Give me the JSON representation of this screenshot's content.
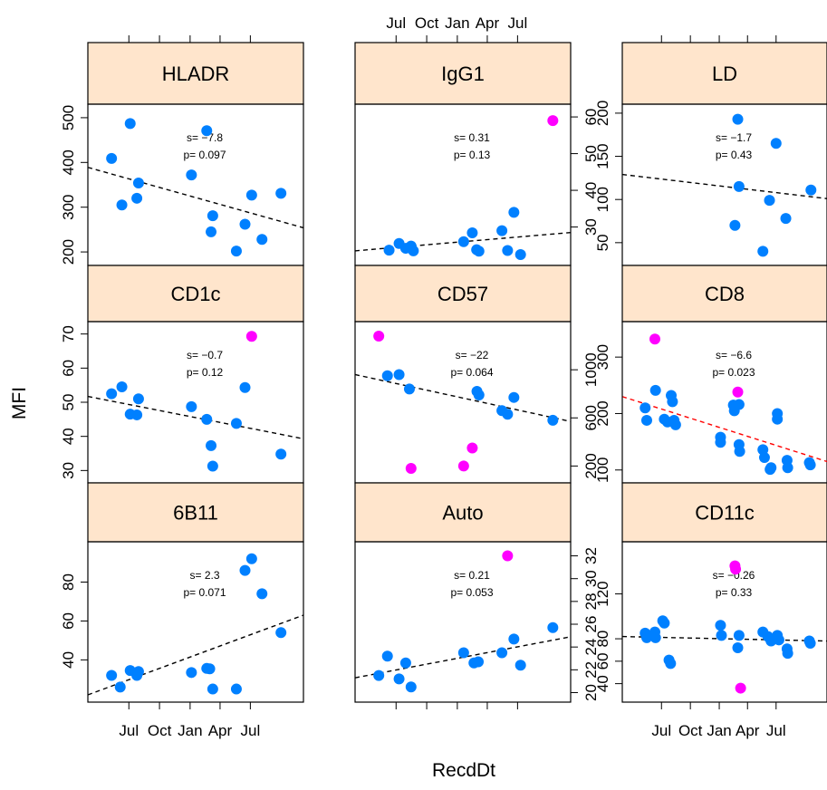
{
  "colors": {
    "strip_fill": "#FFE5CC",
    "point": "#0080FF",
    "outlier": "#FF00FF",
    "fit_line": "#000000",
    "fit_line_significant": "#FF0000"
  },
  "chart_data": {
    "type": "scatter",
    "layout": "lattice 3x3 trellis",
    "xlabel": "RecdDt",
    "ylabel": "MFI",
    "x_axis": {
      "type": "date",
      "range": [
        "2009-03-27",
        "2010-10-25"
      ],
      "ticks": [
        {
          "value": "2009-07-01",
          "label": "Jul"
        },
        {
          "value": "2009-10-01",
          "label": "Oct"
        },
        {
          "value": "2010-01-01",
          "label": "Jan"
        },
        {
          "value": "2010-04-01",
          "label": "Apr"
        },
        {
          "value": "2010-07-01",
          "label": "Jul"
        }
      ]
    },
    "panels": [
      {
        "name": "HLADR",
        "ylim": [
          186,
          514
        ],
        "yticks": [
          200,
          300,
          400,
          500
        ],
        "slope_text": "s= −7.8",
        "p_text": "p= 0.097",
        "fit": {
          "color": "black",
          "y_start": 389,
          "y_end": 254
        },
        "points": [
          {
            "date": "2009-05-10",
            "y": 409
          },
          {
            "date": "2009-06-10",
            "y": 305
          },
          {
            "date": "2009-07-05",
            "y": 487
          },
          {
            "date": "2009-07-25",
            "y": 320
          },
          {
            "date": "2009-07-30",
            "y": 354
          },
          {
            "date": "2010-01-05",
            "y": 372
          },
          {
            "date": "2010-02-20",
            "y": 471
          },
          {
            "date": "2010-03-10",
            "y": 281
          },
          {
            "date": "2010-03-05",
            "y": 245
          },
          {
            "date": "2010-05-20",
            "y": 202
          },
          {
            "date": "2010-06-15",
            "y": 262
          },
          {
            "date": "2010-07-05",
            "y": 327
          },
          {
            "date": "2010-08-05",
            "y": 228
          },
          {
            "date": "2010-10-01",
            "y": 331
          }
        ]
      },
      {
        "name": "IgG1",
        "ylim": [
          21.5,
          61.5
        ],
        "yticks": [
          30,
          40,
          50,
          60
        ],
        "slope_text": "s= 0.31",
        "p_text": "p= 0.13",
        "fit": {
          "color": "black",
          "y_start": 23.5,
          "y_end": 28.5
        },
        "points": [
          {
            "date": "2009-06-10",
            "y": 23.7
          },
          {
            "date": "2009-07-10",
            "y": 25.5
          },
          {
            "date": "2009-07-30",
            "y": 24.2
          },
          {
            "date": "2009-08-15",
            "y": 24.8
          },
          {
            "date": "2009-08-22",
            "y": 23.5
          },
          {
            "date": "2010-01-20",
            "y": 26.0
          },
          {
            "date": "2010-02-15",
            "y": 28.4
          },
          {
            "date": "2010-02-28",
            "y": 23.8
          },
          {
            "date": "2010-03-07",
            "y": 23.4
          },
          {
            "date": "2010-05-15",
            "y": 29.0
          },
          {
            "date": "2010-06-01",
            "y": 23.6
          },
          {
            "date": "2010-06-20",
            "y": 34.0
          },
          {
            "date": "2010-07-10",
            "y": 22.5
          },
          {
            "date": "2010-10-15",
            "y": 59.0,
            "outlier": true
          }
        ]
      },
      {
        "name": "LD",
        "ylim": [
          32,
          202
        ],
        "yticks": [
          50,
          100,
          150,
          200
        ],
        "slope_text": "s= −1.7",
        "p_text": "p= 0.43",
        "fit": {
          "color": "black",
          "y_start": 129,
          "y_end": 101
        },
        "points": [
          {
            "date": "2010-02-20",
            "y": 70
          },
          {
            "date": "2010-03-01",
            "y": 193
          },
          {
            "date": "2010-03-05",
            "y": 115
          },
          {
            "date": "2010-05-20",
            "y": 40
          },
          {
            "date": "2010-06-10",
            "y": 99
          },
          {
            "date": "2010-07-01",
            "y": 165
          },
          {
            "date": "2010-08-01",
            "y": 78
          },
          {
            "date": "2010-10-20",
            "y": 111
          }
        ]
      },
      {
        "name": "CD1c",
        "ylim": [
          28.5,
          71.5
        ],
        "yticks": [
          30,
          40,
          50,
          60,
          70
        ],
        "slope_text": "s= −0.7",
        "p_text": "p= 0.12",
        "fit": {
          "color": "black",
          "y_start": 51.7,
          "y_end": 39.3
        },
        "points": [
          {
            "date": "2009-05-10",
            "y": 52.5
          },
          {
            "date": "2009-06-10",
            "y": 54.5
          },
          {
            "date": "2009-07-05",
            "y": 46.5
          },
          {
            "date": "2009-07-25",
            "y": 46.3
          },
          {
            "date": "2009-07-30",
            "y": 51.0
          },
          {
            "date": "2010-01-05",
            "y": 48.7
          },
          {
            "date": "2010-02-20",
            "y": 45.0
          },
          {
            "date": "2010-03-05",
            "y": 37.3
          },
          {
            "date": "2010-03-10",
            "y": 31.3
          },
          {
            "date": "2010-05-20",
            "y": 43.8
          },
          {
            "date": "2010-06-15",
            "y": 54.3
          },
          {
            "date": "2010-07-05",
            "y": 69.3,
            "outlier": true
          },
          {
            "date": "2010-10-01",
            "y": 34.8
          }
        ]
      },
      {
        "name": "CD57",
        "ylim": [
          120,
          1340
        ],
        "yticks": [
          200,
          600,
          1000
        ],
        "slope_text": "s= −22",
        "p_text": "p= 0.064",
        "fit": {
          "color": "black",
          "y_start": 960,
          "y_end": 570
        },
        "points": [
          {
            "date": "2009-05-10",
            "y": 1280,
            "outlier": true
          },
          {
            "date": "2009-06-05",
            "y": 950
          },
          {
            "date": "2009-07-10",
            "y": 960
          },
          {
            "date": "2009-08-10",
            "y": 840
          },
          {
            "date": "2009-08-15",
            "y": 180,
            "outlier": true
          },
          {
            "date": "2010-01-20",
            "y": 200,
            "outlier": true
          },
          {
            "date": "2010-02-15",
            "y": 350,
            "outlier": true
          },
          {
            "date": "2010-03-01",
            "y": 820
          },
          {
            "date": "2010-03-07",
            "y": 790
          },
          {
            "date": "2010-05-15",
            "y": 660
          },
          {
            "date": "2010-06-01",
            "y": 630
          },
          {
            "date": "2010-06-20",
            "y": 770
          },
          {
            "date": "2010-10-15",
            "y": 580
          }
        ]
      },
      {
        "name": "CD8",
        "ylim": [
          90,
          350
        ],
        "yticks": [
          100,
          200,
          300
        ],
        "slope_text": "s= −6.6",
        "p_text": "p= 0.023",
        "fit": {
          "color": "red",
          "y_start": 230,
          "y_end": 115
        },
        "points": [
          {
            "date": "2009-05-10",
            "y": 210
          },
          {
            "date": "2009-05-15",
            "y": 188
          },
          {
            "date": "2009-06-10",
            "y": 332,
            "outlier": true
          },
          {
            "date": "2009-06-12",
            "y": 241
          },
          {
            "date": "2009-07-10",
            "y": 190
          },
          {
            "date": "2009-07-20",
            "y": 185
          },
          {
            "date": "2009-08-01",
            "y": 232
          },
          {
            "date": "2009-08-05",
            "y": 221
          },
          {
            "date": "2009-08-10",
            "y": 188
          },
          {
            "date": "2009-08-15",
            "y": 180
          },
          {
            "date": "2010-01-05",
            "y": 158
          },
          {
            "date": "2010-01-05",
            "y": 149
          },
          {
            "date": "2010-02-15",
            "y": 215
          },
          {
            "date": "2010-02-18",
            "y": 205
          },
          {
            "date": "2010-03-01",
            "y": 238,
            "outlier": true
          },
          {
            "date": "2010-03-05",
            "y": 216
          },
          {
            "date": "2010-03-05",
            "y": 145
          },
          {
            "date": "2010-03-07",
            "y": 133
          },
          {
            "date": "2010-05-20",
            "y": 136
          },
          {
            "date": "2010-05-25",
            "y": 122
          },
          {
            "date": "2010-06-15",
            "y": 104
          },
          {
            "date": "2010-06-12",
            "y": 101
          },
          {
            "date": "2010-07-05",
            "y": 200
          },
          {
            "date": "2010-07-05",
            "y": 190
          },
          {
            "date": "2010-08-05",
            "y": 117
          },
          {
            "date": "2010-08-07",
            "y": 104
          },
          {
            "date": "2010-10-15",
            "y": 113
          },
          {
            "date": "2010-10-18",
            "y": 109
          }
        ]
      },
      {
        "name": "6B11",
        "ylim": [
          22,
          97
        ],
        "yticks": [
          40,
          60,
          80
        ],
        "slope_text": "s= 2.3",
        "p_text": "p= 0.071",
        "fit": {
          "color": "black",
          "y_start": 22,
          "y_end": 63
        },
        "points": [
          {
            "date": "2009-05-10",
            "y": 32
          },
          {
            "date": "2009-06-05",
            "y": 26
          },
          {
            "date": "2009-07-05",
            "y": 34.5
          },
          {
            "date": "2009-07-25",
            "y": 32
          },
          {
            "date": "2009-07-30",
            "y": 34
          },
          {
            "date": "2010-01-05",
            "y": 33.5
          },
          {
            "date": "2010-02-20",
            "y": 35.6
          },
          {
            "date": "2010-03-01",
            "y": 35.4
          },
          {
            "date": "2010-03-10",
            "y": 25
          },
          {
            "date": "2010-05-20",
            "y": 25
          },
          {
            "date": "2010-06-15",
            "y": 86
          },
          {
            "date": "2010-07-05",
            "y": 92
          },
          {
            "date": "2010-08-05",
            "y": 74
          },
          {
            "date": "2010-10-01",
            "y": 54
          }
        ]
      },
      {
        "name": "Auto",
        "ylim": [
          19.8,
          32.6
        ],
        "yticks": [
          20,
          22,
          24,
          26,
          28,
          30,
          32
        ],
        "slope_text": "s= 0.21",
        "p_text": "p= 0.053",
        "fit": {
          "color": "black",
          "y_start": 21.3,
          "y_end": 24.9
        },
        "points": [
          {
            "date": "2009-05-10",
            "y": 21.5
          },
          {
            "date": "2009-06-05",
            "y": 23.2
          },
          {
            "date": "2009-07-10",
            "y": 21.2
          },
          {
            "date": "2009-07-30",
            "y": 22.6
          },
          {
            "date": "2009-08-15",
            "y": 20.5
          },
          {
            "date": "2010-01-20",
            "y": 23.5
          },
          {
            "date": "2010-02-20",
            "y": 22.6
          },
          {
            "date": "2010-03-05",
            "y": 22.7
          },
          {
            "date": "2010-05-15",
            "y": 23.5
          },
          {
            "date": "2010-06-01",
            "y": 32.0,
            "outlier": true
          },
          {
            "date": "2010-06-20",
            "y": 24.7
          },
          {
            "date": "2010-07-10",
            "y": 22.4
          },
          {
            "date": "2010-10-15",
            "y": 25.7
          }
        ]
      },
      {
        "name": "CD11c",
        "ylim": [
          30,
          160
        ],
        "yticks": [
          40,
          60,
          80,
          120
        ],
        "slope_text": "s= −0.26",
        "p_text": "p= 0.33",
        "fit": {
          "color": "black",
          "y_start": 82,
          "y_end": 78
        },
        "points": [
          {
            "date": "2009-05-10",
            "y": 85
          },
          {
            "date": "2009-05-15",
            "y": 81
          },
          {
            "date": "2009-06-10",
            "y": 86
          },
          {
            "date": "2009-06-12",
            "y": 81
          },
          {
            "date": "2009-07-05",
            "y": 96
          },
          {
            "date": "2009-07-10",
            "y": 94
          },
          {
            "date": "2009-07-25",
            "y": 61
          },
          {
            "date": "2009-07-30",
            "y": 58
          },
          {
            "date": "2010-01-05",
            "y": 92
          },
          {
            "date": "2010-01-08",
            "y": 83
          },
          {
            "date": "2010-02-20",
            "y": 145,
            "outlier": true
          },
          {
            "date": "2010-02-22",
            "y": 142,
            "outlier": true
          },
          {
            "date": "2010-03-05",
            "y": 83
          },
          {
            "date": "2010-03-01",
            "y": 72
          },
          {
            "date": "2010-03-10",
            "y": 36,
            "outlier": true
          },
          {
            "date": "2010-05-20",
            "y": 86
          },
          {
            "date": "2010-06-05",
            "y": 82
          },
          {
            "date": "2010-06-15",
            "y": 78
          },
          {
            "date": "2010-07-05",
            "y": 83
          },
          {
            "date": "2010-07-10",
            "y": 79
          },
          {
            "date": "2010-08-05",
            "y": 71
          },
          {
            "date": "2010-08-07",
            "y": 67
          },
          {
            "date": "2010-10-15",
            "y": 78
          },
          {
            "date": "2010-10-18",
            "y": 76
          }
        ]
      }
    ]
  }
}
